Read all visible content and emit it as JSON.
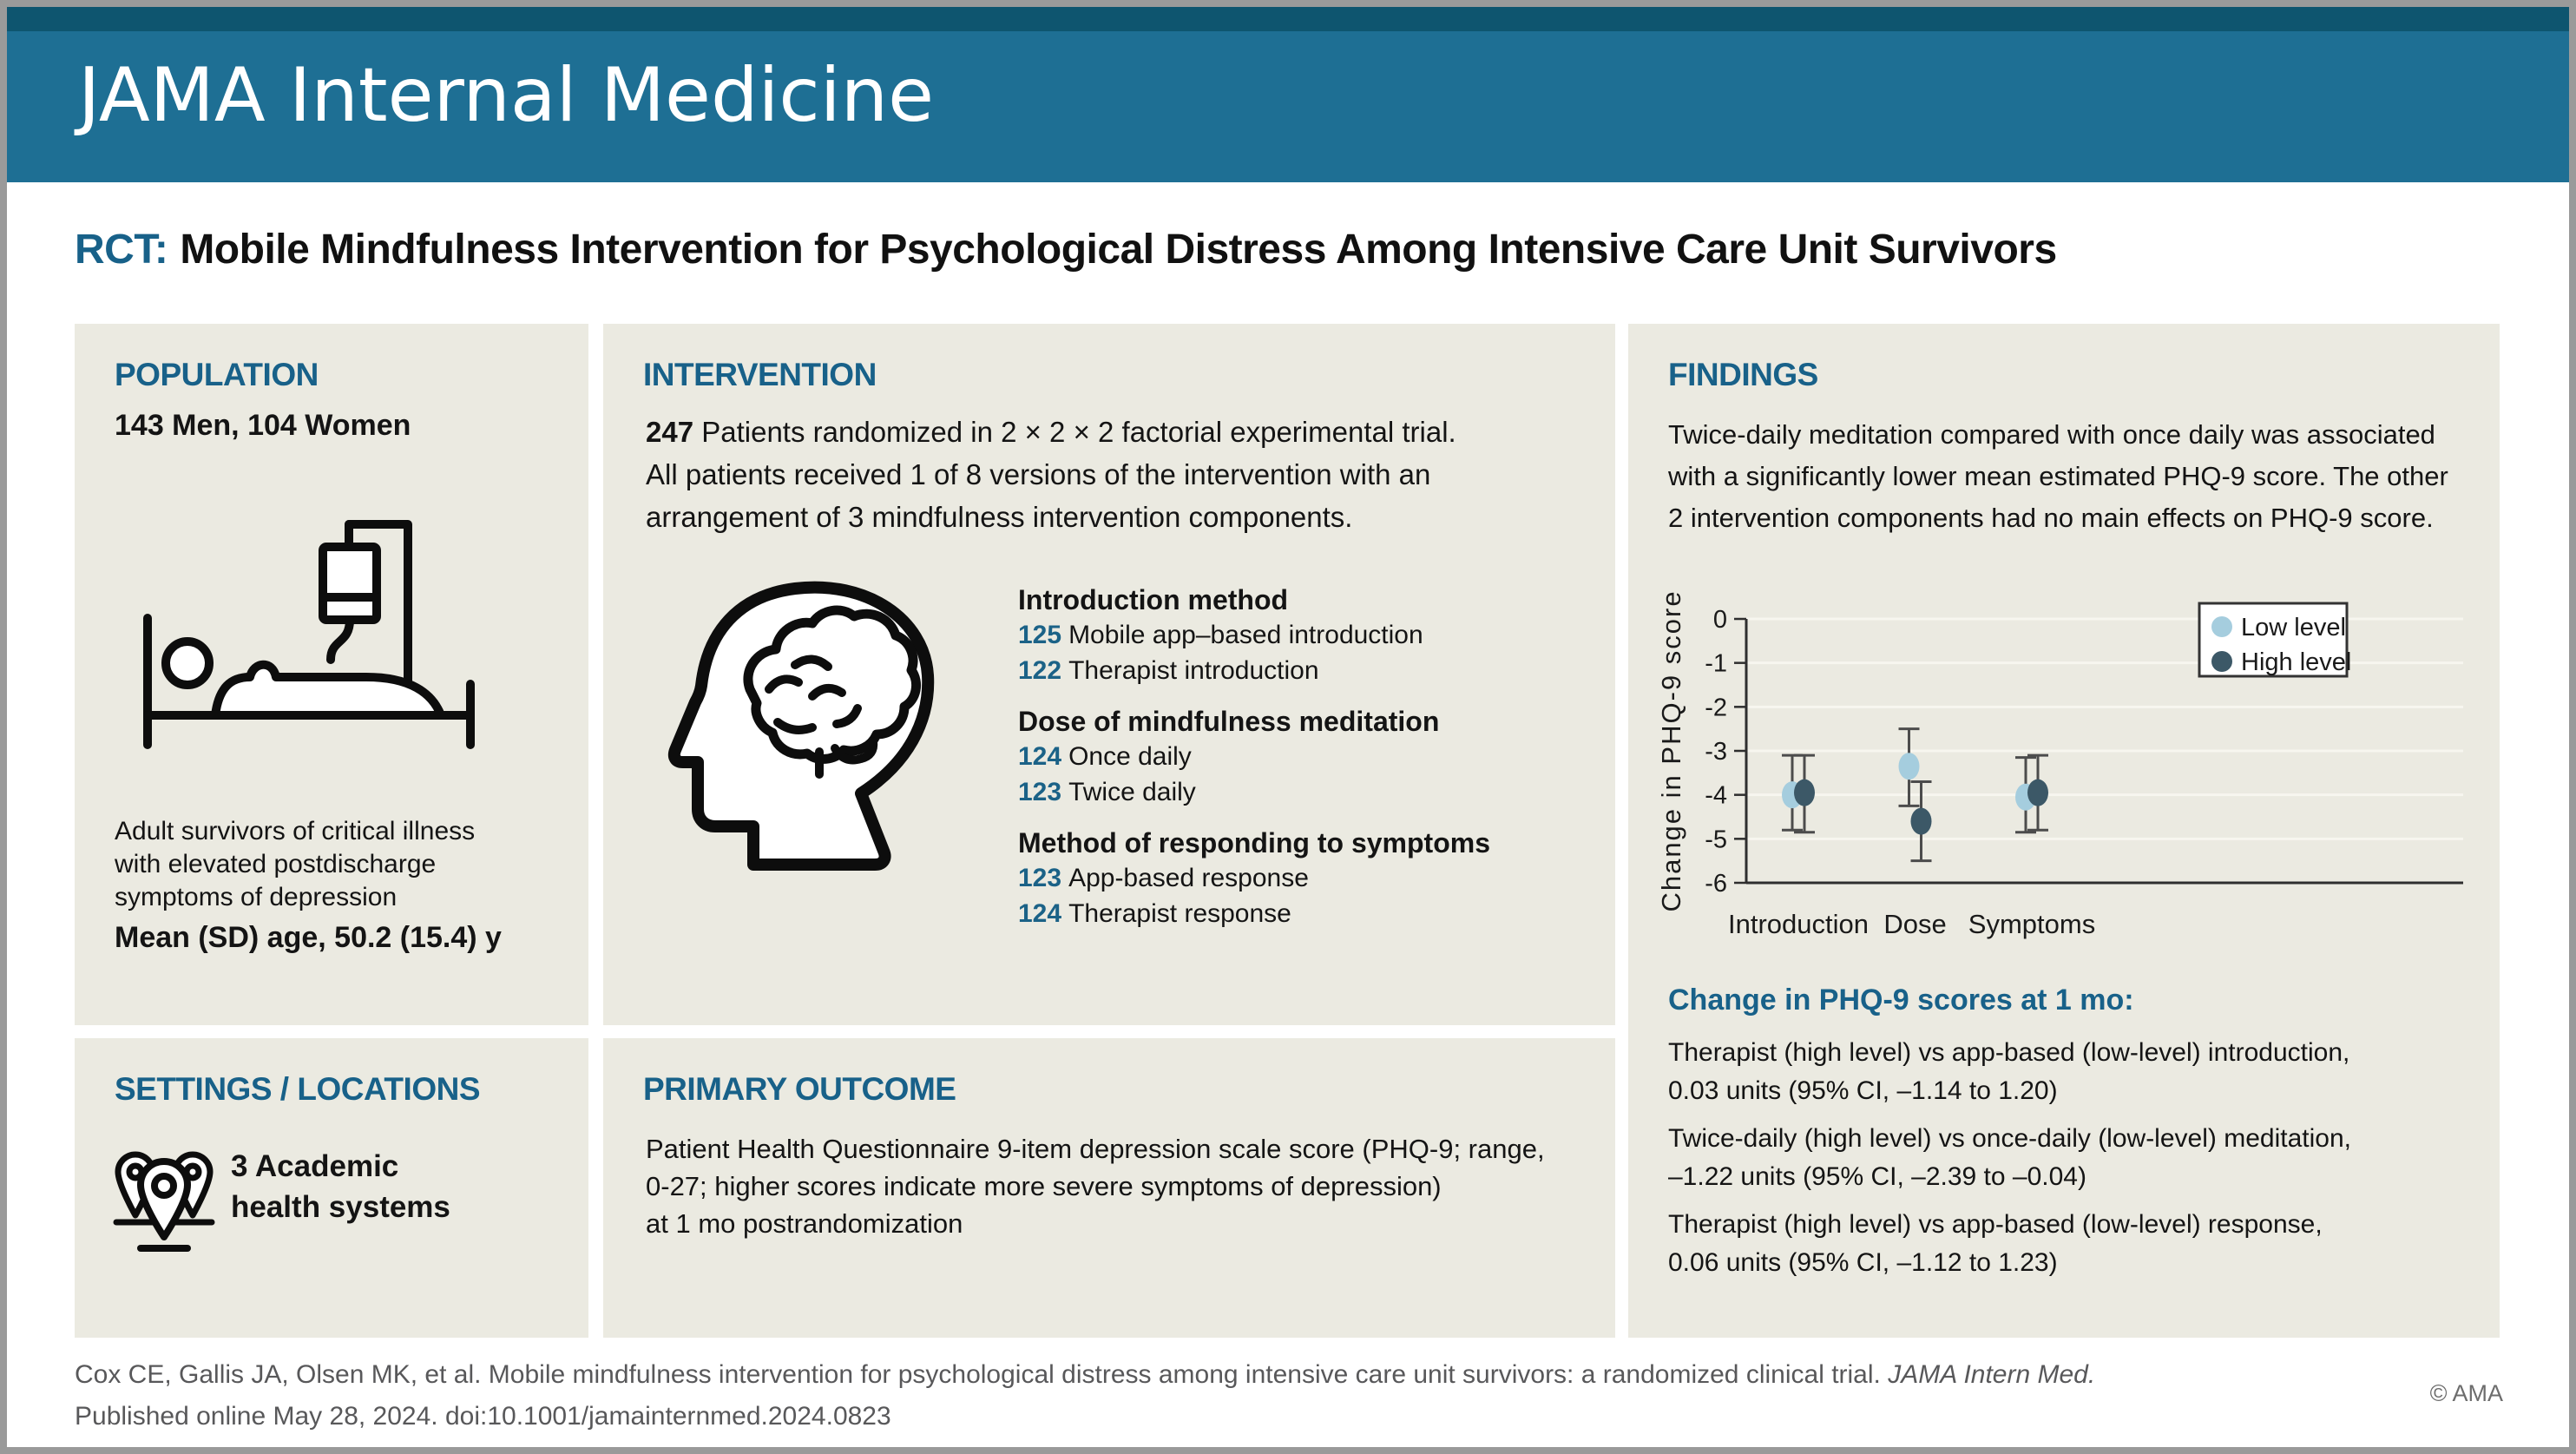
{
  "masthead": {
    "journal": "JAMA Internal Medicine"
  },
  "title": {
    "tag": "RCT:",
    "text": "Mobile Mindfulness Intervention for Psychological Distress Among Intensive Care Unit Survivors"
  },
  "population": {
    "heading": "POPULATION",
    "stat": "143 Men, 104 Women",
    "icon": "patient-in-hospital-bed-icon",
    "description_lines": [
      "Adult survivors of critical illness",
      "with elevated postdischarge",
      "symptoms of depression"
    ],
    "age": "Mean (SD) age, 50.2 (15.4) y"
  },
  "settings": {
    "heading": "SETTINGS / LOCATIONS",
    "icon": "map-pins-icon",
    "value_lines": [
      "3 Academic",
      "health systems"
    ]
  },
  "intervention": {
    "heading": "INTERVENTION",
    "icon": "head-with-brain-icon",
    "intro": {
      "num": "247",
      "line1": "Patients randomized in 2 × 2 × 2 factorial experimental trial.",
      "line2": "All patients received 1 of 8 versions of the intervention with an",
      "line3": "arrangement of 3 mindfulness intervention components."
    },
    "groups": [
      {
        "heading": "Introduction method",
        "items": [
          {
            "num": "125",
            "label": "Mobile app–based introduction"
          },
          {
            "num": "122",
            "label": "Therapist introduction"
          }
        ]
      },
      {
        "heading": "Dose of mindfulness meditation",
        "items": [
          {
            "num": "124",
            "label": "Once daily"
          },
          {
            "num": "123",
            "label": "Twice daily"
          }
        ]
      },
      {
        "heading": "Method of responding to symptoms",
        "items": [
          {
            "num": "123",
            "label": "App-based response"
          },
          {
            "num": "124",
            "label": "Therapist response"
          }
        ]
      }
    ]
  },
  "primary_outcome": {
    "heading": "PRIMARY OUTCOME",
    "lines": [
      "Patient Health Questionnaire 9-item depression scale score (PHQ-9; range,",
      "0-27; higher scores indicate more severe symptoms of depression)",
      "at 1 mo postrandomization"
    ]
  },
  "findings": {
    "heading": "FINDINGS",
    "summary_lines": [
      "Twice-daily meditation compared with once daily was associated",
      "with a significantly lower mean estimated PHQ-9 score. The other",
      "2 intervention components had no main effects on PHQ-9 score."
    ],
    "subheading": "Change in PHQ-9 scores at 1 mo:",
    "results": [
      {
        "line1": "Therapist (high level) vs app-based (low-level) introduction,",
        "line2": "0.03 units (95% CI, –1.14 to 1.20)"
      },
      {
        "line1": "Twice-daily (high level) vs once-daily (low-level) meditation,",
        "line2": "–1.22 units (95% CI, –2.39 to –0.04)"
      },
      {
        "line1": "Therapist (high level) vs app-based (low-level) response,",
        "line2": "0.06 units (95% CI, –1.12 to 1.23)"
      }
    ]
  },
  "chart_data": {
    "type": "scatter",
    "title": "",
    "xlabel": "",
    "ylabel": "Change in PHQ-9 score",
    "ylim": [
      -6,
      0
    ],
    "yticks": [
      0,
      -1,
      -2,
      -3,
      -4,
      -5,
      -6
    ],
    "grid": true,
    "legend_position": "top-right",
    "categories": [
      "Introduction",
      "Dose",
      "Symptoms"
    ],
    "series": [
      {
        "name": "Low level",
        "color": "#a5cdde",
        "values": [
          -4.0,
          -3.35,
          -4.05
        ],
        "ci": [
          [
            -4.8,
            -3.1
          ],
          [
            -4.25,
            -2.5
          ],
          [
            -4.85,
            -3.15
          ]
        ]
      },
      {
        "name": "High level",
        "color": "#3c5867",
        "values": [
          -3.95,
          -4.6,
          -3.95
        ],
        "ci": [
          [
            -4.85,
            -3.1
          ],
          [
            -5.5,
            -3.7
          ],
          [
            -4.8,
            -3.1
          ]
        ]
      }
    ]
  },
  "footer": {
    "citation_pre": "Cox CE, Gallis JA, Olsen MK, et al. Mobile mindfulness intervention for psychological distress among intensive care unit survivors: a randomized clinical trial. ",
    "citation_journal": "JAMA Intern Med.",
    "citation_line2": "Published online May 28, 2024. doi:10.1001/jamainternmed.2024.0823",
    "copyright": "© AMA"
  },
  "colors": {
    "masthead": "#1e6f94",
    "masthead_dark": "#0e556f",
    "heading_teal": "#186189",
    "panel_bg": "#ebeae1",
    "low_level": "#a5cdde",
    "high_level": "#3c5867"
  }
}
